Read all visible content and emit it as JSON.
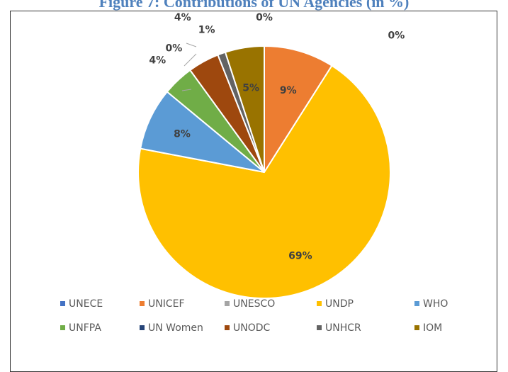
{
  "title": "Figure 7: Contributions of UN Agencies (in %)",
  "chart_data": {
    "type": "pie",
    "legend_position": "bottom",
    "slices": [
      {
        "name": "UNECE",
        "value": 0,
        "label": "0%",
        "color": "#4472c4"
      },
      {
        "name": "UNICEF",
        "value": 9,
        "label": "9%",
        "color": "#ed7d31"
      },
      {
        "name": "UNESCO",
        "value": 0,
        "label": "0%",
        "color": "#a5a5a5"
      },
      {
        "name": "UNDP",
        "value": 69,
        "label": "69%",
        "color": "#ffc000"
      },
      {
        "name": "WHO",
        "value": 8,
        "label": "8%",
        "color": "#5b9bd5"
      },
      {
        "name": "UNFPA",
        "value": 4,
        "label": "4%",
        "color": "#70ad47"
      },
      {
        "name": "UN Women",
        "value": 0,
        "label": "0%",
        "color": "#264478"
      },
      {
        "name": "UNODC",
        "value": 4,
        "label": "4%",
        "color": "#9e480e"
      },
      {
        "name": "UNHCR",
        "value": 1,
        "label": "1%",
        "color": "#636363"
      },
      {
        "name": "IOM",
        "value": 5,
        "label": "5%",
        "color": "#997300"
      }
    ]
  }
}
